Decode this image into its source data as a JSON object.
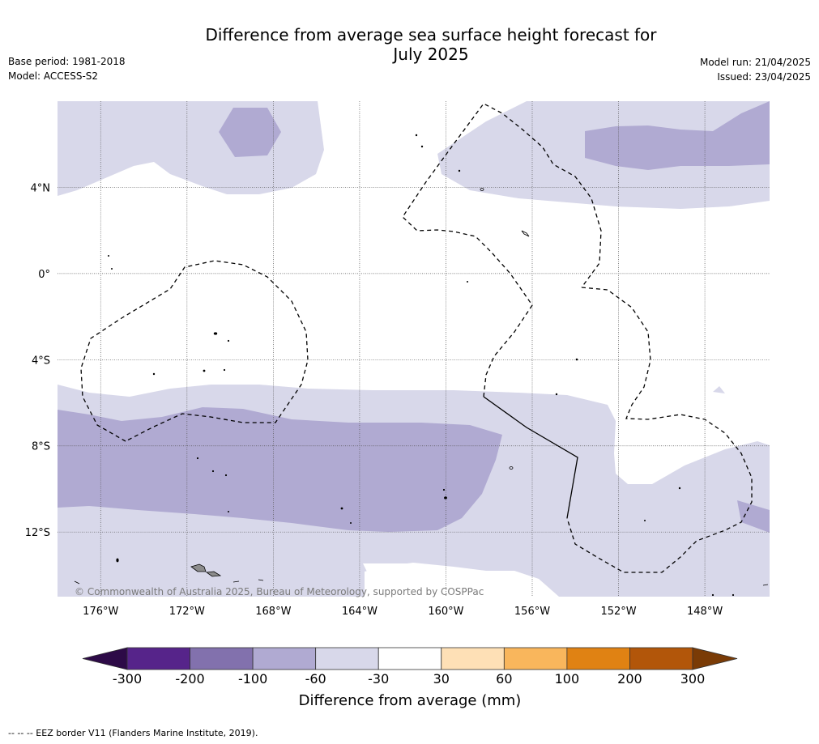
{
  "title": "Difference from average sea surface height forecast for\nJuly 2025",
  "meta_left": {
    "base_period": "Base period: 1981-2018",
    "model": "Model: ACCESS-S2"
  },
  "meta_right": {
    "model_run": "Model run: 21/04/2025",
    "issued": "Issued: 23/04/2025"
  },
  "map": {
    "lon_range": [
      -178,
      -145
    ],
    "lat_range": [
      -15,
      8
    ],
    "lon_ticks": [
      {
        "value": -176,
        "label": "176°W"
      },
      {
        "value": -172,
        "label": "172°W"
      },
      {
        "value": -168,
        "label": "168°W"
      },
      {
        "value": -164,
        "label": "164°W"
      },
      {
        "value": -160,
        "label": "160°W"
      },
      {
        "value": -156,
        "label": "156°W"
      },
      {
        "value": -152,
        "label": "152°W"
      },
      {
        "value": -148,
        "label": "148°W"
      }
    ],
    "lat_ticks": [
      {
        "value": 4,
        "label": "4°N"
      },
      {
        "value": 0,
        "label": "0°"
      },
      {
        "value": -4,
        "label": "4°S"
      },
      {
        "value": -8,
        "label": "8°S"
      },
      {
        "value": -12,
        "label": "12°S"
      }
    ],
    "copyright": "© Commonwealth of Australia 2025, Bureau of Meteorology, supported by COSPPac"
  },
  "colorbar": {
    "title": "Difference from average (mm)",
    "tick_labels": [
      "-300",
      "-200",
      "-100",
      "-60",
      "-30",
      "30",
      "60",
      "100",
      "200",
      "300"
    ],
    "colors": {
      "below_min": "#2d0a47",
      "bins": [
        "#56248a",
        "#8271ad",
        "#b0aad2",
        "#d8d8ea",
        "#ffffff",
        "#fee0b6",
        "#f9b65c",
        "#e08213",
        "#b2560a"
      ],
      "above_max": "#7a3b06"
    }
  },
  "footnote": "-- -- -- EEZ border V11 (Flanders Marine Institute, 2019)."
}
